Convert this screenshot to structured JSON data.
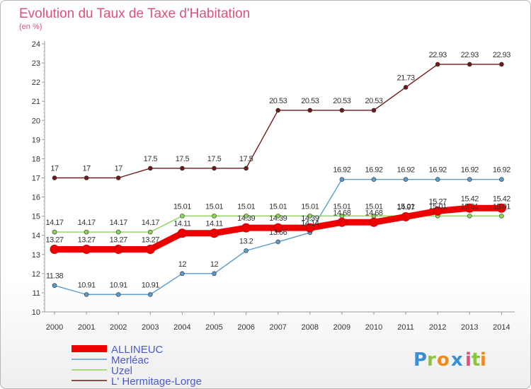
{
  "chart_data": {
    "type": "line",
    "title": "Evolution du Taux de Taxe d'Habitation",
    "subtitle": "(en %)",
    "xlabel": "",
    "ylabel": "",
    "x": [
      "2000",
      "2001",
      "2002",
      "2003",
      "2004",
      "2005",
      "2006",
      "2007",
      "2008",
      "2009",
      "2010",
      "2011",
      "2012",
      "2013",
      "2014"
    ],
    "ylim": [
      10,
      24
    ],
    "yticks": [
      "10",
      "11",
      "12",
      "13",
      "14",
      "15",
      "16",
      "17",
      "18",
      "19",
      "20",
      "21",
      "22",
      "23",
      "24"
    ],
    "grid": false,
    "legend_position": "bottom-left",
    "series": [
      {
        "name": "L' Hermitage-Lorge",
        "color": "#6b1a1a",
        "width": "thin",
        "values": [
          17,
          17,
          17,
          17.5,
          17.5,
          17.5,
          17.5,
          20.53,
          20.53,
          20.53,
          20.53,
          21.73,
          22.93,
          22.93,
          22.93
        ],
        "labels": [
          "17",
          "17",
          "17",
          "17.5",
          "17.5",
          "17.5",
          "17.5",
          "20.53",
          "20.53",
          "20.53",
          "20.53",
          "21.73",
          "22.93",
          "22.93",
          "22.93"
        ]
      },
      {
        "name": "Merléac",
        "color": "#5b9bc8",
        "width": "thin",
        "values": [
          11.38,
          10.91,
          10.91,
          10.91,
          12,
          12,
          13.2,
          13.66,
          14.14,
          16.92,
          16.92,
          16.92,
          16.92,
          16.92,
          16.92
        ],
        "labels": [
          "11.38",
          "10.91",
          "10.91",
          "10.91",
          "12",
          "12",
          "13.2",
          "13.66",
          "14.14",
          "16.92",
          "16.92",
          "16.92",
          "16.92",
          "16.92",
          "16.92"
        ]
      },
      {
        "name": "Uzel",
        "color": "#8fd45a",
        "width": "thin",
        "values": [
          14.17,
          14.17,
          14.17,
          14.17,
          15.01,
          15.01,
          15.01,
          15.01,
          15.01,
          15.01,
          15.01,
          15.01,
          15.01,
          15.01,
          15.01
        ],
        "labels": [
          "14.17",
          "14.17",
          "14.17",
          "14.17",
          "15.01",
          "15.01",
          "15.01",
          "15.01",
          "15.01",
          "15.01",
          "15.01",
          "15.01",
          "15.01",
          "15.01",
          "15.01"
        ]
      },
      {
        "name": "ALLINEUC",
        "color": "#ee0000",
        "width": "thick",
        "values": [
          13.27,
          13.27,
          13.27,
          13.27,
          14.11,
          14.11,
          14.39,
          14.39,
          14.39,
          14.68,
          14.68,
          14.97,
          15.27,
          15.42,
          15.42
        ],
        "labels": [
          "13.27",
          "13.27",
          "13.27",
          "13.27",
          "14.11",
          "14.11",
          "14.39",
          "14.39",
          "14.39",
          "14.68",
          "14.68",
          "14.97",
          "15.27",
          "15.42",
          "15.42"
        ]
      }
    ],
    "legend": [
      "ALLINEUC",
      "Merléac",
      "Uzel",
      "L' Hermitage-Lorge"
    ],
    "watermark": "Proxiti"
  }
}
